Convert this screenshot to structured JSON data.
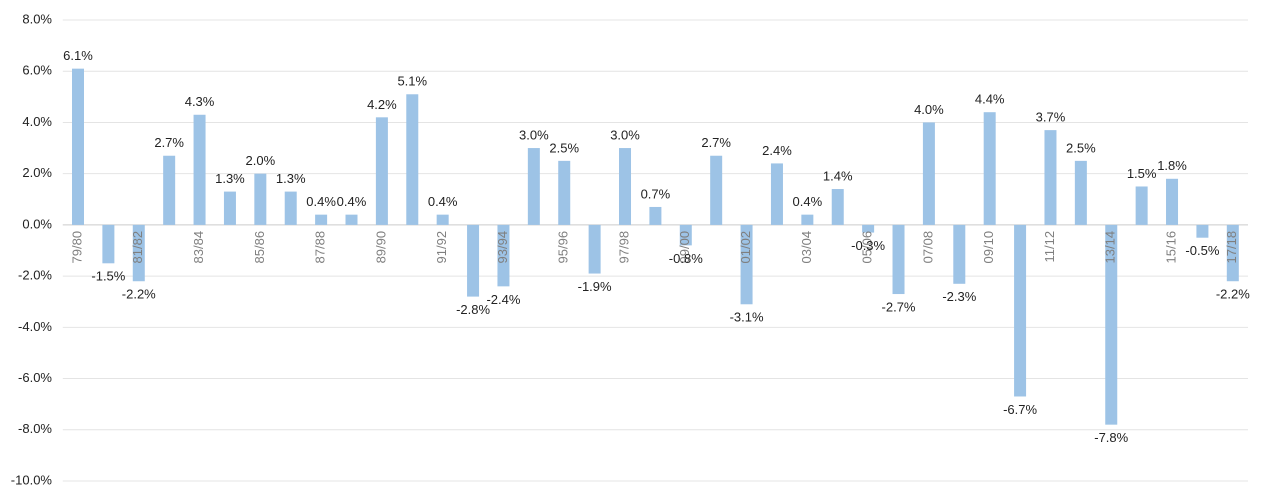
{
  "chart_data": {
    "type": "bar",
    "categories": [
      "79/80",
      null,
      "81/82",
      null,
      "83/84",
      null,
      "85/86",
      null,
      "87/88",
      null,
      "89/90",
      null,
      "91/92",
      null,
      "93/94",
      null,
      "95/96",
      null,
      "97/98",
      null,
      "99/00",
      null,
      "01/02",
      null,
      "03/04",
      null,
      "05/06",
      null,
      "07/08",
      null,
      "09/10",
      null,
      "11/12",
      null,
      "13/14",
      null,
      "15/16",
      null,
      "17/18"
    ],
    "values": [
      6.1,
      -1.5,
      -2.2,
      2.7,
      4.3,
      1.3,
      2.0,
      1.3,
      0.4,
      0.4,
      4.2,
      5.1,
      0.4,
      -2.8,
      -2.4,
      3.0,
      2.5,
      -1.9,
      3.0,
      0.7,
      -0.8,
      2.7,
      -3.1,
      2.4,
      0.4,
      1.4,
      -0.3,
      -2.7,
      4.0,
      -2.3,
      4.4,
      -6.7,
      3.7,
      2.5,
      -7.8,
      1.5,
      1.8,
      -0.5,
      -2.2
    ],
    "value_labels": [
      "6.1%",
      "-1.5%",
      "-2.2%",
      "2.7%",
      "4.3%",
      "1.3%",
      "2.0%",
      "1.3%",
      "0.4%",
      "0.4%",
      "4.2%",
      "5.1%",
      "0.4%",
      "-2.8%",
      "-2.4%",
      "3.0%",
      "2.5%",
      "-1.9%",
      "3.0%",
      "0.7%",
      "-0.8%",
      "2.7%",
      "-3.1%",
      "2.4%",
      "0.4%",
      "1.4%",
      "-0.3%",
      "-2.7%",
      "4.0%",
      "-2.3%",
      "4.4%",
      "-6.7%",
      "3.7%",
      "2.5%",
      "-7.8%",
      "1.5%",
      "1.8%",
      "-0.5%",
      "-2.2%"
    ],
    "color": "#9dc3e6",
    "ylim": [
      -10,
      8
    ],
    "yticks": [
      {
        "value": -10,
        "label": "-10.0%"
      },
      {
        "value": -8,
        "label": "-8.0%"
      },
      {
        "value": -6,
        "label": "-6.0%"
      },
      {
        "value": -4,
        "label": "-4.0%"
      },
      {
        "value": -2,
        "label": "-2.0%"
      },
      {
        "value": 0,
        "label": "0.0%"
      },
      {
        "value": 2,
        "label": "2.0%"
      },
      {
        "value": 4,
        "label": "4.0%"
      },
      {
        "value": 6,
        "label": "6.0%"
      },
      {
        "value": 8,
        "label": "8.0%"
      }
    ],
    "grid": true
  }
}
